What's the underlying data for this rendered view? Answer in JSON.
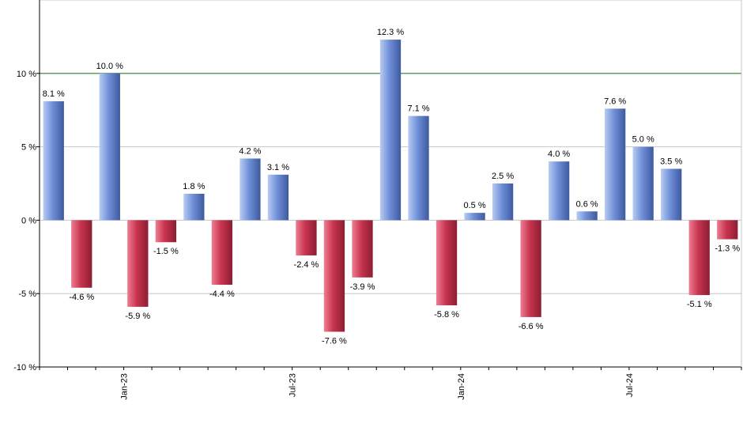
{
  "chart_data": {
    "type": "bar",
    "values": [
      8.1,
      -4.6,
      10.0,
      -5.9,
      -1.5,
      1.8,
      -4.4,
      4.2,
      3.1,
      -2.4,
      -7.6,
      -3.9,
      12.3,
      7.1,
      -5.8,
      0.5,
      2.5,
      -6.6,
      4.0,
      0.6,
      7.6,
      5.0,
      3.5,
      -5.1,
      -1.3
    ],
    "value_labels": [
      "8.1 %",
      "-4.6 %",
      "10.0 %",
      "-5.9 %",
      "-1.5 %",
      "1.8 %",
      "-4.4 %",
      "4.2 %",
      "3.1 %",
      "-2.4 %",
      "-7.6 %",
      "-3.9 %",
      "12.3 %",
      "7.1 %",
      "-5.8 %",
      "0.5 %",
      "2.5 %",
      "-6.6 %",
      "4.0 %",
      "0.6 %",
      "7.6 %",
      "5.0 %",
      "3.5 %",
      "-5.1 %",
      "-1.3 %"
    ],
    "x_tick_labels": [
      {
        "index": 2.5,
        "label": "Jan-23"
      },
      {
        "index": 8.5,
        "label": "Jul-23"
      },
      {
        "index": 14.5,
        "label": "Jan-24"
      },
      {
        "index": 20.5,
        "label": "Jul-24"
      }
    ],
    "y_ticks": [
      {
        "value": 10,
        "label": "10 %"
      },
      {
        "value": 5,
        "label": "5 %"
      },
      {
        "value": 0,
        "label": "0 %"
      },
      {
        "value": -5,
        "label": "-5 %"
      },
      {
        "value": -10,
        "label": "-10 %"
      }
    ],
    "ylim": [
      -10,
      15
    ],
    "reference_line": 10,
    "grid": true,
    "colors": {
      "positive": "#6f8fd8",
      "positive_light": "#b8ccf2",
      "positive_dark": "#3e5a9e",
      "negative": "#c8344f",
      "negative_light": "#ee7d92",
      "negative_dark": "#8c1e33",
      "reference_line": "#2d7a2d",
      "grid": "#c8c8c8",
      "axis": "#000000"
    }
  }
}
